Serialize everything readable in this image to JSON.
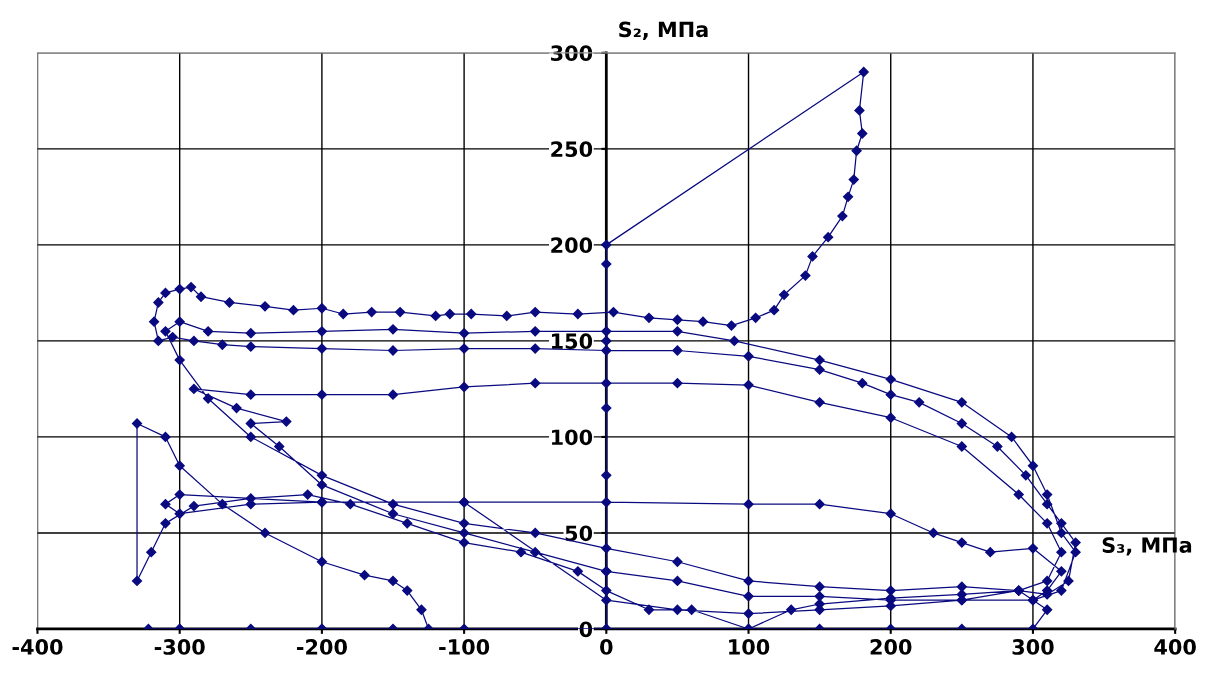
{
  "chart_data": {
    "type": "line",
    "xlabel": "S₃, МПа",
    "ylabel": "S₂, МПа",
    "xlim": [
      -400,
      400
    ],
    "ylim": [
      0,
      300
    ],
    "xticks": [
      -400,
      -300,
      -200,
      -100,
      0,
      100,
      200,
      300,
      400
    ],
    "yticks": [
      0,
      50,
      100,
      150,
      200,
      250,
      300
    ],
    "grid": true,
    "marker": "diamond",
    "line_style": "solid",
    "series": [
      {
        "color": "#0a0a80",
        "x": [
          0,
          0,
          0,
          0,
          0,
          0,
          0,
          181,
          178,
          180,
          176,
          174,
          170,
          166,
          156,
          145,
          140,
          125,
          118,
          105,
          88,
          68,
          50,
          30,
          5,
          -20,
          -50,
          -70,
          -95,
          -110,
          -120,
          -145,
          -165,
          -185,
          -200,
          -220,
          -240,
          -265,
          -285,
          -292,
          -300,
          -310,
          -315,
          -318,
          -315,
          -305,
          -290,
          -270,
          -250,
          -200,
          -150,
          -100,
          -50,
          0,
          50,
          100,
          150,
          180,
          200,
          220,
          250,
          275,
          295,
          310,
          320,
          330,
          325,
          310,
          290,
          250,
          200,
          150,
          100,
          50,
          0,
          -50,
          -100,
          -150,
          -200,
          -250,
          -280,
          -300,
          -310,
          -300,
          -280,
          -250,
          -200,
          -150,
          -100,
          -50,
          0,
          50,
          90,
          150,
          200,
          250,
          285,
          300,
          310,
          320,
          330,
          320,
          300,
          250,
          200,
          150,
          100,
          50,
          0,
          -50,
          -100,
          -150,
          -200,
          -230,
          -250,
          -225,
          -260,
          -290,
          -250,
          -200,
          -150,
          -100,
          -50,
          0,
          50,
          100,
          150,
          200,
          250,
          290,
          310,
          320,
          310,
          290,
          250,
          200,
          150,
          130,
          100,
          60,
          30,
          0,
          -20,
          -60,
          -100,
          -140,
          -180,
          -210,
          -250,
          -290,
          -310,
          -320,
          -330,
          -330,
          -310,
          -300,
          -270,
          -240,
          -200,
          -170,
          -150,
          -140,
          -130,
          -125,
          -150,
          -200,
          -250,
          -300,
          -322,
          -300,
          -200,
          -100,
          0,
          100,
          150,
          200,
          250,
          300,
          310,
          290,
          250,
          200,
          150,
          100,
          50,
          0,
          -100,
          -200,
          -300,
          -310,
          -300,
          -250,
          -200,
          -100,
          0,
          100,
          150,
          200,
          230,
          250,
          270,
          300,
          320,
          310,
          300
        ],
        "values": [
          0,
          30,
          80,
          115,
          150,
          190,
          200,
          290,
          270,
          258,
          249,
          234,
          225,
          215,
          204,
          194,
          184,
          174,
          166,
          162,
          158,
          160,
          161,
          162,
          165,
          164,
          165,
          163,
          164,
          164,
          163,
          165,
          165,
          164,
          167,
          166,
          168,
          170,
          173,
          178,
          177,
          175,
          170,
          160,
          150,
          152,
          150,
          148,
          147,
          146,
          145,
          146,
          146,
          145,
          145,
          142,
          135,
          128,
          122,
          118,
          107,
          95,
          80,
          65,
          55,
          45,
          25,
          18,
          20,
          22,
          20,
          22,
          25,
          35,
          42,
          50,
          55,
          65,
          80,
          100,
          120,
          140,
          155,
          160,
          155,
          154,
          155,
          156,
          154,
          155,
          155,
          155,
          150,
          140,
          130,
          118,
          100,
          85,
          70,
          50,
          40,
          20,
          15,
          15,
          15,
          17,
          17,
          25,
          30,
          40,
          50,
          60,
          75,
          95,
          107,
          108,
          115,
          125,
          122,
          122,
          122,
          126,
          128,
          128,
          128,
          127,
          118,
          110,
          95,
          70,
          55,
          40,
          25,
          20,
          18,
          16,
          13,
          10,
          0,
          10,
          10,
          20,
          30,
          40,
          45,
          55,
          65,
          70,
          68,
          64,
          55,
          40,
          25,
          107,
          100,
          85,
          65,
          50,
          35,
          28,
          25,
          20,
          10,
          0,
          0,
          0,
          0,
          0,
          0,
          0,
          0,
          0,
          0,
          0,
          0,
          0,
          0,
          0,
          10,
          20,
          15,
          12,
          10,
          8,
          10,
          15,
          66,
          66,
          70,
          65,
          60,
          65,
          66,
          66,
          66,
          65,
          65,
          60,
          50,
          45,
          40,
          42,
          30,
          20,
          15
        ]
      }
    ]
  }
}
